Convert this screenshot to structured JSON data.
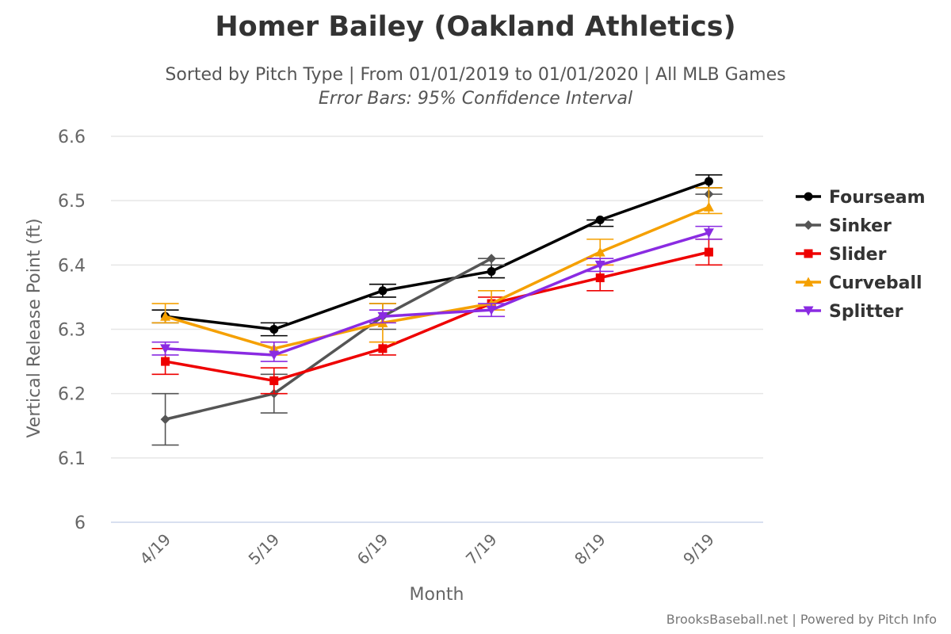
{
  "chart_data": {
    "type": "line",
    "title": "Homer Bailey (Oakland Athletics)",
    "subtitle": "Sorted by Pitch Type | From 01/01/2019 to 01/01/2020 | All MLB Games",
    "subtitle2": "Error Bars: 95% Confidence Interval",
    "xlabel": "Month",
    "ylabel": "Vertical Release Point (ft)",
    "categories": [
      "4/19",
      "5/19",
      "6/19",
      "7/19",
      "8/19",
      "9/19"
    ],
    "ylim": [
      6,
      6.6
    ],
    "yticks": [
      "6",
      "6.1",
      "6.2",
      "6.3",
      "6.4",
      "6.5",
      "6.6"
    ],
    "grid": true,
    "legend_position": "right",
    "credits": "BrooksBaseball.net | Powered by Pitch Info",
    "series": [
      {
        "name": "Fourseam",
        "color": "#000000",
        "marker": "circle",
        "values": [
          6.32,
          6.3,
          6.36,
          6.39,
          6.47,
          6.53
        ],
        "err_low": [
          6.31,
          6.29,
          6.35,
          6.38,
          6.46,
          6.52
        ],
        "err_high": [
          6.33,
          6.31,
          6.37,
          6.4,
          6.47,
          6.54
        ]
      },
      {
        "name": "Sinker",
        "color": "#555555",
        "marker": "diamond",
        "values": [
          6.16,
          6.2,
          6.32,
          6.41,
          null,
          6.51
        ],
        "err_low": [
          6.12,
          6.17,
          6.3,
          6.4,
          null,
          6.51
        ],
        "err_high": [
          6.2,
          6.23,
          6.34,
          6.41,
          null,
          6.51
        ]
      },
      {
        "name": "Slider",
        "color": "#ee0000",
        "marker": "square",
        "values": [
          6.25,
          6.22,
          6.27,
          6.34,
          6.38,
          6.42
        ],
        "err_low": [
          6.23,
          6.2,
          6.26,
          6.33,
          6.36,
          6.4
        ],
        "err_high": [
          6.27,
          6.24,
          6.28,
          6.35,
          6.4,
          6.44
        ]
      },
      {
        "name": "Curveball",
        "color": "#f5a000",
        "marker": "triangle",
        "values": [
          6.32,
          6.27,
          6.31,
          6.34,
          6.42,
          6.49
        ],
        "err_low": [
          6.31,
          6.26,
          6.28,
          6.33,
          6.4,
          6.48
        ],
        "err_high": [
          6.34,
          6.28,
          6.34,
          6.36,
          6.44,
          6.52
        ]
      },
      {
        "name": "Splitter",
        "color": "#8a2be2",
        "marker": "triangle-down",
        "values": [
          6.27,
          6.26,
          6.32,
          6.33,
          6.4,
          6.45
        ],
        "err_low": [
          6.26,
          6.25,
          6.31,
          6.32,
          6.39,
          6.44
        ],
        "err_high": [
          6.28,
          6.28,
          6.33,
          6.34,
          6.41,
          6.46
        ]
      }
    ]
  }
}
